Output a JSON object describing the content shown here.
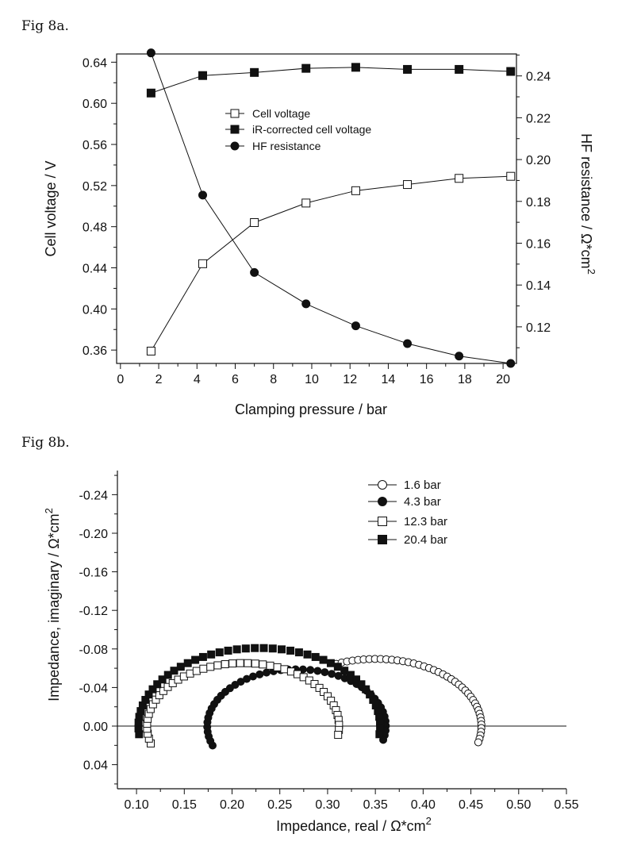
{
  "figure_a_label": "Fig 8a.",
  "figure_b_label": "Fig 8b.",
  "chart_data": [
    {
      "type": "line",
      "title": "Fig 8a.",
      "xlabel": "Clamping pressure / bar",
      "ylabel": "Cell voltage / V",
      "y2label": "HF resistance / Ω*cm",
      "y2label_sup": "2",
      "xlim": [
        -0.2,
        20.7
      ],
      "ylim": [
        0.347,
        0.648
      ],
      "y2lim": [
        0.1025,
        0.2505
      ],
      "xticks": [
        "0",
        "2",
        "4",
        "6",
        "8",
        "10",
        "12",
        "14",
        "16",
        "18",
        "20"
      ],
      "yticks": [
        "0.36",
        "0.40",
        "0.44",
        "0.48",
        "0.52",
        "0.56",
        "0.60",
        "0.64"
      ],
      "y2ticks": [
        "0.12",
        "0.14",
        "0.16",
        "0.18",
        "0.20",
        "0.22",
        "0.24"
      ],
      "legend": [
        "Cell voltage",
        "iR-corrected cell voltage",
        "HF resistance"
      ],
      "legend_position": "center",
      "x": [
        1.6,
        4.3,
        7.0,
        9.7,
        12.3,
        15.0,
        17.7,
        20.4
      ],
      "series": [
        {
          "name": "Cell voltage",
          "axis": "left",
          "marker": "open-square",
          "values": [
            0.359,
            0.444,
            0.484,
            0.503,
            0.515,
            0.521,
            0.527,
            0.529
          ]
        },
        {
          "name": "iR-corrected cell voltage",
          "axis": "left",
          "marker": "filled-square",
          "values": [
            0.61,
            0.627,
            0.63,
            0.634,
            0.635,
            0.633,
            0.633,
            0.631
          ]
        },
        {
          "name": "HF resistance",
          "axis": "right",
          "marker": "filled-circle",
          "values": [
            0.251,
            0.183,
            0.146,
            0.131,
            0.1205,
            0.112,
            0.106,
            0.1025
          ]
        }
      ]
    },
    {
      "type": "scatter",
      "title": "Fig 8b.",
      "xlabel": "Impedance, real / Ω*cm",
      "xlabel_sup": "2",
      "ylabel": "Impedance, imaginary / Ω*cm",
      "ylabel_sup": "2",
      "xlim": [
        0.08,
        0.55
      ],
      "ylim": [
        0.065,
        -0.265
      ],
      "y_inverted": true,
      "xticks": [
        "0.10",
        "0.15",
        "0.20",
        "0.25",
        "0.30",
        "0.35",
        "0.40",
        "0.45",
        "0.50",
        "0.55"
      ],
      "yticks": [
        "-0.24",
        "-0.20",
        "-0.16",
        "-0.12",
        "-0.08",
        "-0.04",
        "0.00",
        "0.04"
      ],
      "legend": [
        "1.6 bar",
        "4.3 bar",
        "12.3 bar",
        "20.4 bar"
      ],
      "legend_position": "top-right",
      "series": [
        {
          "name": "1.6 bar",
          "marker": "open-circle",
          "center": 0.3505,
          "radius": 0.1105,
          "y_scale": 0.63,
          "theta_start": 112,
          "theta_end": -14,
          "n": 42,
          "fit": true,
          "fit_start": 112,
          "fit_end": -10
        },
        {
          "name": "4.3 bar",
          "marker": "filled-circle",
          "center": 0.2675,
          "radius": 0.0935,
          "y_scale": 0.63,
          "theta_start": 200,
          "theta_end": -14,
          "n": 46,
          "fit": false
        },
        {
          "name": "12.3 bar",
          "marker": "open-square",
          "center": 0.2115,
          "radius": 0.1005,
          "y_scale": 0.65,
          "theta_start": 196,
          "theta_end": -8,
          "n": 46,
          "fit": true,
          "fit_start": 196,
          "fit_end": -8
        },
        {
          "name": "20.4 bar",
          "marker": "filled-square",
          "center": 0.2285,
          "radius": 0.1265,
          "y_scale": 0.64,
          "theta_start": 186,
          "theta_end": -6,
          "n": 46,
          "fit": false
        }
      ]
    }
  ]
}
